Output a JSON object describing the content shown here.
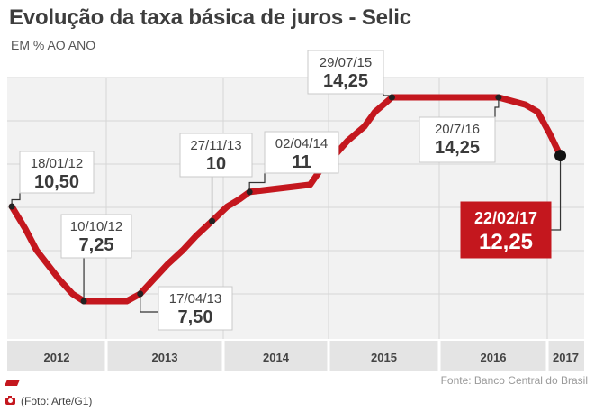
{
  "title": "Evolução da taxa básica de juros - Selic",
  "subtitle": "EM % AO ANO",
  "source": "Fonte: Banco Central do Brasil",
  "credit": "(Foto: Arte/G1)",
  "colors": {
    "line": "#c4171e",
    "grid": "#d6d6d6",
    "plot_bg": "#f2f2f2",
    "axis_band": "#e4e4e4",
    "callout_highlight": "#c4171e"
  },
  "chart_data": {
    "type": "line",
    "title": "Evolução da taxa básica de juros - Selic",
    "ylabel": "EM % AO ANO",
    "x_categories": [
      "2012",
      "2013",
      "2014",
      "2015",
      "2016",
      "2017"
    ],
    "ylim": [
      6.5,
      15.5
    ],
    "grid": true,
    "series": [
      {
        "points": [
          {
            "date": "2012-01-18",
            "value": 10.5
          },
          {
            "date": "2012-03-07",
            "value": 9.75
          },
          {
            "date": "2012-04-18",
            "value": 9.0
          },
          {
            "date": "2012-05-30",
            "value": 8.5
          },
          {
            "date": "2012-07-11",
            "value": 8.0
          },
          {
            "date": "2012-08-29",
            "value": 7.5
          },
          {
            "date": "2012-10-10",
            "value": 7.25
          },
          {
            "date": "2013-03-06",
            "value": 7.25
          },
          {
            "date": "2013-04-17",
            "value": 7.5
          },
          {
            "date": "2013-05-29",
            "value": 8.0
          },
          {
            "date": "2013-07-10",
            "value": 8.5
          },
          {
            "date": "2013-08-28",
            "value": 9.0
          },
          {
            "date": "2013-10-09",
            "value": 9.5
          },
          {
            "date": "2013-11-27",
            "value": 10.0
          },
          {
            "date": "2014-01-15",
            "value": 10.5
          },
          {
            "date": "2014-02-26",
            "value": 10.75
          },
          {
            "date": "2014-04-02",
            "value": 11.0
          },
          {
            "date": "2014-10-29",
            "value": 11.25
          },
          {
            "date": "2014-12-03",
            "value": 11.75
          },
          {
            "date": "2015-01-21",
            "value": 12.25
          },
          {
            "date": "2015-03-04",
            "value": 12.75
          },
          {
            "date": "2015-04-29",
            "value": 13.25
          },
          {
            "date": "2015-06-03",
            "value": 13.75
          },
          {
            "date": "2015-07-29",
            "value": 14.25
          },
          {
            "date": "2016-07-20",
            "value": 14.25
          },
          {
            "date": "2016-10-19",
            "value": 14.0
          },
          {
            "date": "2016-11-30",
            "value": 13.75
          },
          {
            "date": "2017-01-11",
            "value": 13.0
          },
          {
            "date": "2017-02-22",
            "value": 12.25
          }
        ]
      }
    ],
    "annotations": [
      {
        "date": "2012-01-18",
        "label_date": "18/01/12",
        "label_value": "10,50",
        "highlight": false
      },
      {
        "date": "2012-10-10",
        "label_date": "10/10/12",
        "label_value": "7,25",
        "highlight": false
      },
      {
        "date": "2013-04-17",
        "label_date": "17/04/13",
        "label_value": "7,50",
        "highlight": false
      },
      {
        "date": "2013-11-27",
        "label_date": "27/11/13",
        "label_value": "10",
        "highlight": false
      },
      {
        "date": "2014-04-02",
        "label_date": "02/04/14",
        "label_value": "11",
        "highlight": false
      },
      {
        "date": "2015-07-29",
        "label_date": "29/07/15",
        "label_value": "14,25",
        "highlight": false
      },
      {
        "date": "2016-07-20",
        "label_date": "20/7/16",
        "label_value": "14,25",
        "highlight": false
      },
      {
        "date": "2017-02-22",
        "label_date": "22/02/17",
        "label_value": "12,25",
        "highlight": true
      }
    ]
  }
}
